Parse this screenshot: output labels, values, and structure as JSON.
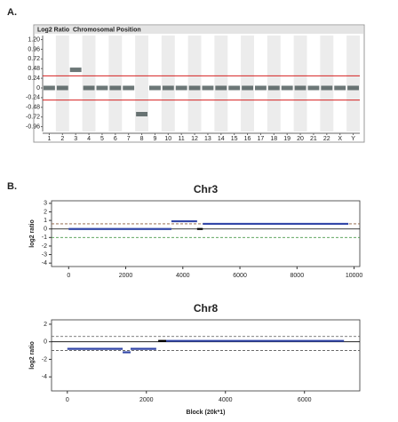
{
  "panel_labels": [
    "A.",
    "B."
  ],
  "chart_data": [
    {
      "type": "genome",
      "y_label": "Log2 Ratio",
      "x_label": "Chromosomal Position",
      "categories": [
        "1",
        "2",
        "3",
        "4",
        "5",
        "6",
        "7",
        "8",
        "9",
        "10",
        "11",
        "12",
        "13",
        "14",
        "15",
        "16",
        "17",
        "18",
        "19",
        "20",
        "21",
        "22",
        "X",
        "Y"
      ],
      "values": [
        0,
        0,
        0.45,
        0,
        0,
        0,
        0,
        -0.65,
        0,
        0,
        0,
        0,
        0,
        0,
        0,
        0,
        0,
        0,
        0,
        0,
        0,
        0,
        0,
        0
      ],
      "color": "#3b4a4a",
      "ylim": [
        -1.08,
        1.3
      ],
      "yticks": [
        {
          "value": 1.2,
          "label": "1.20"
        },
        0.96,
        0.72,
        0.48,
        0.24,
        0,
        -0.24,
        -0.48,
        -0.72,
        -0.96
      ],
      "hlines": [
        0.3,
        -0.3
      ],
      "hline_colors": [
        "#d42020",
        "#d42020"
      ],
      "hline_dash": [
        false,
        false
      ]
    },
    {
      "type": "segments",
      "title": "Chr3",
      "y_label": "log2 ratio",
      "starts": [
        0,
        3600,
        4500,
        4700
      ],
      "ends": [
        3600,
        4500,
        4700,
        9800
      ],
      "values": [
        0,
        0.9,
        0,
        0.6
      ],
      "colors": [
        "#3347a8",
        "#3347a8",
        "#000000",
        "#3347a8"
      ],
      "xlim": [
        -600,
        10200
      ],
      "ylim": [
        -4.4,
        3.3
      ],
      "xticks": [
        0,
        2000,
        4000,
        6000,
        8000,
        10000
      ],
      "yticks": [
        -4,
        -3,
        -2,
        -1,
        0,
        1,
        2,
        3
      ],
      "hlines": [
        0.6,
        0,
        -1
      ],
      "hline_colors": [
        "#8a5a3a",
        "#000000",
        "#4a9a4a"
      ],
      "hline_dash": [
        true,
        false,
        true
      ]
    },
    {
      "type": "segments",
      "title": "Chr8",
      "y_label": "log2 ratio",
      "x_label": "Block (20k*1)",
      "starts": [
        0,
        1400,
        1600,
        2300,
        2500
      ],
      "ends": [
        1400,
        1600,
        2250,
        2500,
        7000
      ],
      "values": [
        -0.8,
        -1.2,
        -0.8,
        0.1,
        0.1
      ],
      "colors": [
        "#3347a8",
        "#3347a8",
        "#3347a8",
        "#000000",
        "#3347a8"
      ],
      "xlim": [
        -400,
        7400
      ],
      "ylim": [
        -5.6,
        2.5
      ],
      "xticks": [
        0,
        2000,
        4000,
        6000
      ],
      "yticks": [
        -4,
        -2,
        0,
        2
      ],
      "hlines": [
        0.6,
        0,
        -1
      ],
      "hline_colors": [
        "#555555",
        "#000000",
        "#555555"
      ],
      "hline_dash": [
        true,
        false,
        true
      ]
    }
  ]
}
